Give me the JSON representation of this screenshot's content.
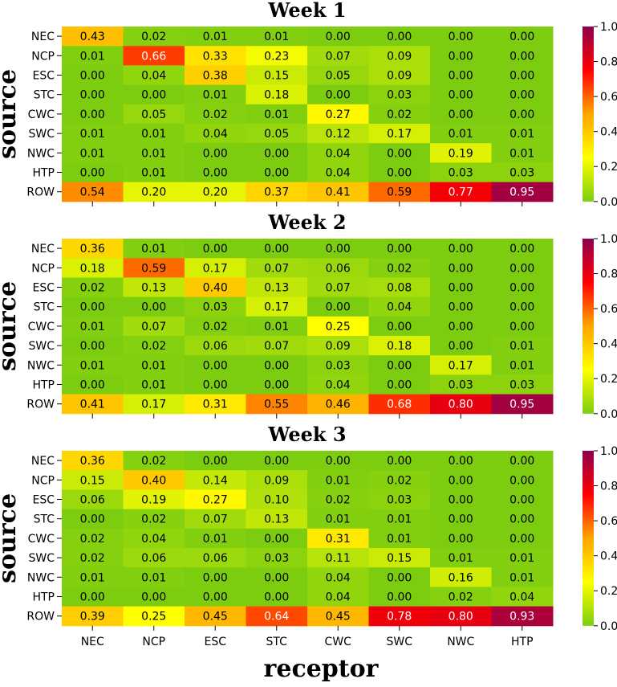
{
  "xlabel": "receptor",
  "colorbar": {
    "range": [
      0,
      1
    ],
    "ticks": [
      "0.0",
      "0.2",
      "0.4",
      "0.6",
      "0.8",
      "1.0"
    ],
    "colors": [
      "#7ccd10",
      "#ffff00",
      "#ffa500",
      "#ff0000",
      "#8b0050"
    ]
  },
  "chart_data": [
    {
      "type": "heatmap",
      "title": "Week 1",
      "ylabel": "source",
      "rows": [
        "NEC",
        "NCP",
        "ESC",
        "STC",
        "CWC",
        "SWC",
        "NWC",
        "HTP",
        "ROW"
      ],
      "columns": [
        "NEC",
        "NCP",
        "ESC",
        "STC",
        "CWC",
        "SWC",
        "NWC",
        "HTP"
      ],
      "values": [
        [
          0.43,
          0.02,
          0.01,
          0.01,
          0.0,
          0.0,
          0.0,
          0.0
        ],
        [
          0.01,
          0.66,
          0.33,
          0.23,
          0.07,
          0.09,
          0.0,
          0.0
        ],
        [
          0.0,
          0.04,
          0.38,
          0.15,
          0.05,
          0.09,
          0.0,
          0.0
        ],
        [
          0.0,
          0.0,
          0.01,
          0.18,
          0.0,
          0.03,
          0.0,
          0.0
        ],
        [
          0.0,
          0.05,
          0.02,
          0.01,
          0.27,
          0.02,
          0.0,
          0.0
        ],
        [
          0.01,
          0.01,
          0.04,
          0.05,
          0.12,
          0.17,
          0.01,
          0.01
        ],
        [
          0.01,
          0.01,
          0.0,
          0.0,
          0.04,
          0.0,
          0.19,
          0.01
        ],
        [
          0.0,
          0.01,
          0.0,
          0.0,
          0.04,
          0.0,
          0.03,
          0.03
        ],
        [
          0.54,
          0.2,
          0.2,
          0.37,
          0.41,
          0.59,
          0.77,
          0.95
        ]
      ],
      "colorbar_range": [
        0,
        1
      ]
    },
    {
      "type": "heatmap",
      "title": "Week 2",
      "ylabel": "source",
      "rows": [
        "NEC",
        "NCP",
        "ESC",
        "STC",
        "CWC",
        "SWC",
        "NWC",
        "HTP",
        "ROW"
      ],
      "columns": [
        "NEC",
        "NCP",
        "ESC",
        "STC",
        "CWC",
        "SWC",
        "NWC",
        "HTP"
      ],
      "values": [
        [
          0.36,
          0.01,
          0.0,
          0.0,
          0.0,
          0.0,
          0.0,
          0.0
        ],
        [
          0.18,
          0.59,
          0.17,
          0.07,
          0.06,
          0.02,
          0.0,
          0.0
        ],
        [
          0.02,
          0.13,
          0.4,
          0.13,
          0.07,
          0.08,
          0.0,
          0.0
        ],
        [
          0.0,
          0.0,
          0.03,
          0.17,
          0.0,
          0.04,
          0.0,
          0.0
        ],
        [
          0.01,
          0.07,
          0.02,
          0.01,
          0.25,
          0.0,
          0.0,
          0.0
        ],
        [
          0.0,
          0.02,
          0.06,
          0.07,
          0.09,
          0.18,
          0.0,
          0.01
        ],
        [
          0.01,
          0.01,
          0.0,
          0.0,
          0.03,
          0.0,
          0.17,
          0.01
        ],
        [
          0.0,
          0.01,
          0.0,
          0.0,
          0.04,
          0.0,
          0.03,
          0.03
        ],
        [
          0.41,
          0.17,
          0.31,
          0.55,
          0.46,
          0.68,
          0.8,
          0.95
        ]
      ],
      "colorbar_range": [
        0,
        1
      ]
    },
    {
      "type": "heatmap",
      "title": "Week 3",
      "ylabel": "source",
      "rows": [
        "NEC",
        "NCP",
        "ESC",
        "STC",
        "CWC",
        "SWC",
        "NWC",
        "HTP",
        "ROW"
      ],
      "columns": [
        "NEC",
        "NCP",
        "ESC",
        "STC",
        "CWC",
        "SWC",
        "NWC",
        "HTP"
      ],
      "values": [
        [
          0.36,
          0.02,
          0.0,
          0.0,
          0.0,
          0.0,
          0.0,
          0.0
        ],
        [
          0.15,
          0.4,
          0.14,
          0.09,
          0.01,
          0.02,
          0.0,
          0.0
        ],
        [
          0.06,
          0.19,
          0.27,
          0.1,
          0.02,
          0.03,
          0.0,
          0.0
        ],
        [
          0.0,
          0.02,
          0.07,
          0.13,
          0.01,
          0.01,
          0.0,
          0.0
        ],
        [
          0.02,
          0.04,
          0.01,
          0.0,
          0.31,
          0.01,
          0.0,
          0.0
        ],
        [
          0.02,
          0.06,
          0.06,
          0.03,
          0.11,
          0.15,
          0.01,
          0.01
        ],
        [
          0.01,
          0.01,
          0.0,
          0.0,
          0.04,
          0.0,
          0.16,
          0.01
        ],
        [
          0.0,
          0.0,
          0.0,
          0.0,
          0.04,
          0.0,
          0.02,
          0.04
        ],
        [
          0.39,
          0.25,
          0.45,
          0.64,
          0.45,
          0.78,
          0.8,
          0.93
        ]
      ],
      "colorbar_range": [
        0,
        1
      ]
    }
  ]
}
